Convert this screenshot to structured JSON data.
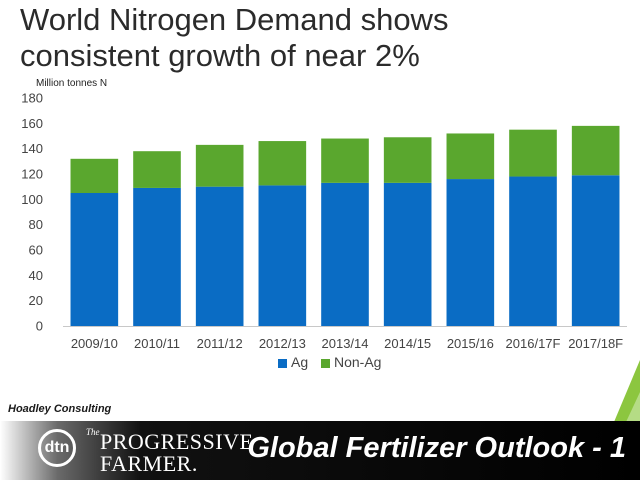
{
  "slide": {
    "title": "World Nitrogen Demand shows\nconsistent growth of near 2%",
    "source": "Hoadley Consulting",
    "footer_title": "Global Fertilizer Outlook - 1",
    "logo": {
      "dtn": "dtn",
      "pf_the": "The",
      "pf_line1": "PROGRESSIVE",
      "pf_line2": "FARMER."
    },
    "colors": {
      "ag": "#0a6cc4",
      "non_ag": "#5aa72e",
      "accent_triangle": "#8cc63f"
    }
  },
  "chart_data": {
    "type": "bar",
    "stacked": true,
    "ylabel": "Million tonnes N",
    "xlabel": "",
    "ylim": [
      0,
      180
    ],
    "yticks": [
      0,
      20,
      40,
      60,
      80,
      100,
      120,
      140,
      160,
      180
    ],
    "categories": [
      "2009/10",
      "2010/11",
      "2011/12",
      "2012/13",
      "2013/14",
      "2014/15",
      "2015/16",
      "2016/17F",
      "2017/18F"
    ],
    "series": [
      {
        "name": "Ag",
        "color": "#0a6cc4",
        "values": [
          105,
          109,
          110,
          111,
          113,
          113,
          116,
          118,
          119
        ]
      },
      {
        "name": "Non-Ag",
        "color": "#5aa72e",
        "values": [
          27,
          29,
          33,
          35,
          35,
          36,
          36,
          37,
          39
        ]
      }
    ],
    "legend_position": "bottom",
    "grid": false
  }
}
